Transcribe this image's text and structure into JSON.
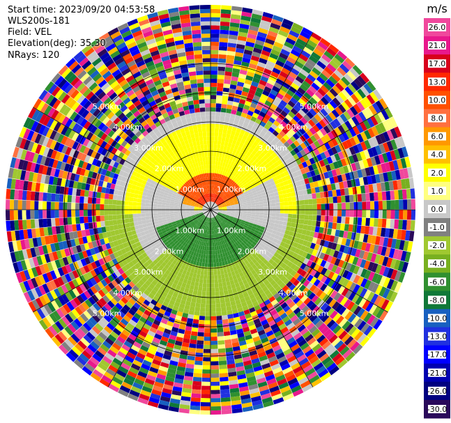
{
  "header": {
    "start_time": "Start time: 2023/09/20 04:53:58",
    "instrument": "WLS200s-181",
    "field": "Field: VEL",
    "elevation": "Elevation(deg): 35.30",
    "nrays": "NRays: 120"
  },
  "chart_data": {
    "type": "heatmap",
    "projection": "polar-ppi",
    "n_rays": 120,
    "range_rings_km": [
      1,
      2,
      3,
      4,
      5
    ],
    "ring_labels": [
      "1.00km",
      "2.00km",
      "3.00km",
      "4.00km",
      "5.00km"
    ],
    "max_range_km": 7.0,
    "grid": true,
    "field_regions_ms": [
      {
        "range_km": [
          0.0,
          1.2
        ],
        "sector": "north",
        "value": 12
      },
      {
        "range_km": [
          0.0,
          2.8
        ],
        "sector": "north-wide",
        "value": 2
      },
      {
        "range_km": [
          0.0,
          1.8
        ],
        "sector": "south",
        "value": -6
      },
      {
        "range_km": [
          0.0,
          3.5
        ],
        "sector": "south-wide",
        "value": -2
      },
      {
        "range_km": [
          0.3,
          2.5
        ],
        "sector": "east-west",
        "value": 0
      }
    ],
    "colorbar": {
      "unit": "m/s",
      "position": "right",
      "ticks": [
        26.0,
        21.0,
        17.0,
        13.0,
        10.0,
        8.0,
        6.0,
        4.0,
        2.0,
        1.0,
        0.0,
        -1.0,
        -2.0,
        -4.0,
        -6.0,
        -8.0,
        -10.0,
        -13.0,
        -17.0,
        -21.0,
        -26.0,
        -30.0
      ],
      "colors": [
        "#f0489c",
        "#e8188c",
        "#d8001c",
        "#ff2800",
        "#ff5000",
        "#ff7040",
        "#ff9800",
        "#ffc000",
        "#ffff00",
        "#ffff80",
        "#c8c8c8",
        "#808080",
        "#a0c830",
        "#78b020",
        "#309030",
        "#107838",
        "#1860c0",
        "#2030e0",
        "#0000ff",
        "#0000b0",
        "#000080",
        "#2a0a5a"
      ]
    }
  }
}
